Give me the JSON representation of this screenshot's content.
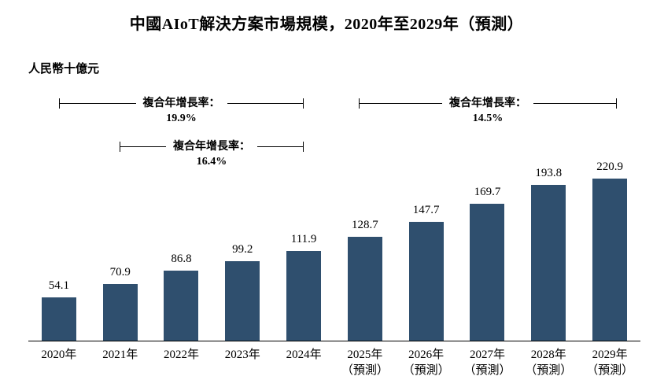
{
  "title": "中國AIoT解決方案市場規模，2020年至2029年（預測）",
  "unit_label": "人民幣十億元",
  "colors": {
    "bar": "#2F4F6E",
    "axis": "#000000",
    "background": "#FFFFFF"
  },
  "chart_data": {
    "type": "bar",
    "title": "中國AIoT解決方案市場規模，2020年至2029年（預測）",
    "ylabel": "人民幣十億元",
    "categories": [
      "2020年",
      "2021年",
      "2022年",
      "2023年",
      "2024年",
      "2025年",
      "2026年",
      "2027年",
      "2028年",
      "2029年"
    ],
    "category_sublabels": [
      "",
      "",
      "",
      "",
      "",
      "（預測）",
      "（預測）",
      "（預測）",
      "（預測）",
      "（預測）"
    ],
    "values": [
      54.1,
      70.9,
      86.8,
      99.2,
      111.9,
      128.7,
      147.7,
      169.7,
      193.8,
      220.9
    ],
    "ylim": [
      0,
      230
    ],
    "grid": false,
    "legend": false,
    "annotations": [
      {
        "label": "複合年增長率：",
        "value": "19.9%",
        "from": "2020年",
        "to": "2024年"
      },
      {
        "label": "複合年增長率：",
        "value": "16.4%",
        "from": "2021年",
        "to": "2024年"
      },
      {
        "label": "複合年增長率：",
        "value": "14.5%",
        "from": "2025年",
        "to": "2029年"
      }
    ]
  }
}
